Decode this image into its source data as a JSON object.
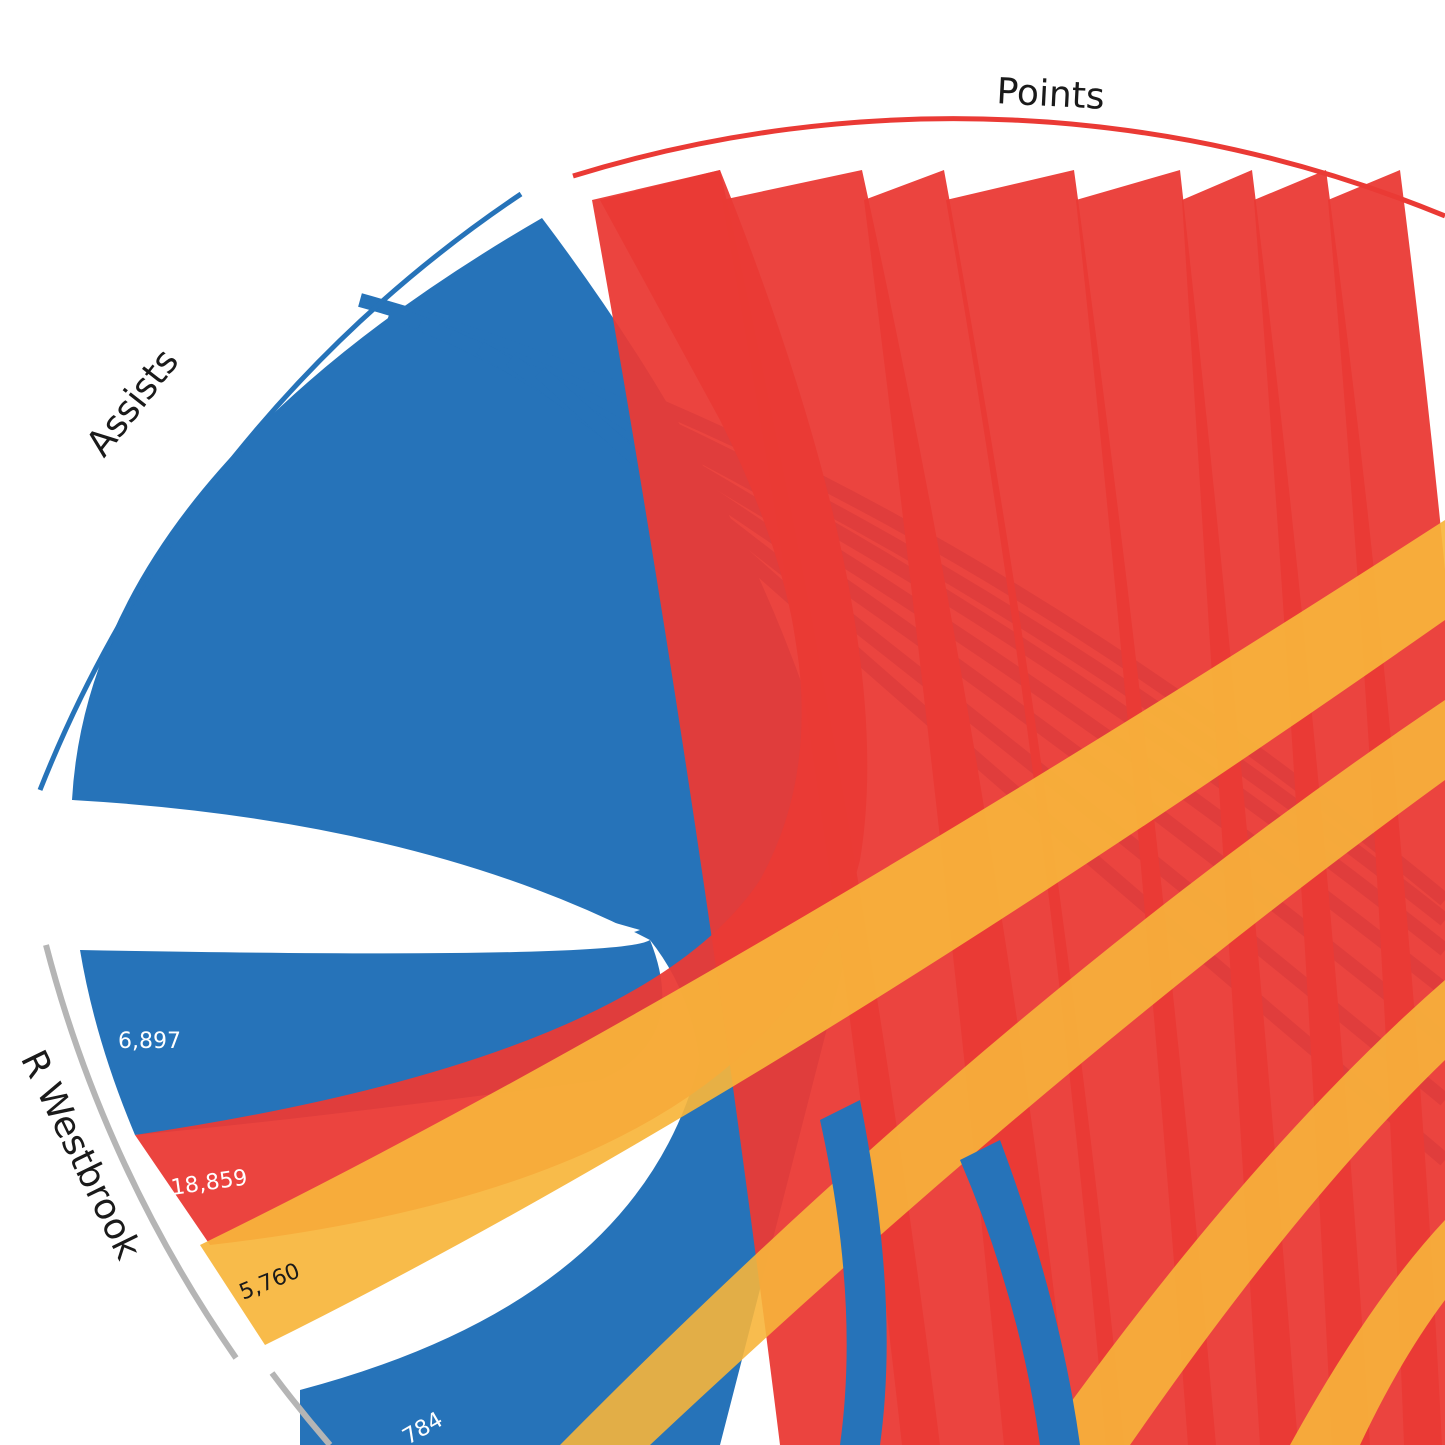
{
  "chart_data": {
    "type": "chord",
    "colors": {
      "assists": "#2673b9",
      "points": "#ea3a35",
      "rebounds": "#f7b53b",
      "player_arc": "#b5b5b5"
    },
    "groups": {
      "points": "Points",
      "assists": "Assists"
    },
    "players": [
      {
        "name": "R Westbrook",
        "assists_label": "6,897",
        "points_label": "18,859",
        "rebounds_label": "5,760",
        "assists": 6897,
        "points": 18859,
        "rebounds": 5760
      },
      {
        "name": "",
        "partial_label": "784"
      }
    ]
  }
}
